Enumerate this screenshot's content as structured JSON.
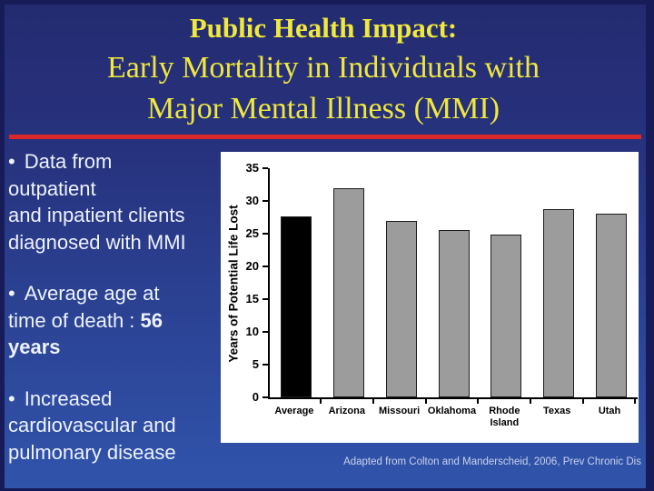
{
  "title": {
    "line1": "Public Health Impact:",
    "line2": "Early Mortality in Individuals with",
    "line3": "Major Mental Illness (MMI)"
  },
  "left_panel": {
    "bullet_char": "•",
    "bullet1": "Data from\noutpatient\nand inpatient clients\ndiagnosed with MMI",
    "bullet2_prefix": "Average age at\ntime of death : ",
    "bullet2_bold": "56\nyears",
    "bullet3": "Increased\ncardiovascular and\npulmonary disease"
  },
  "chart_data": {
    "type": "bar",
    "title": "",
    "xlabel": "",
    "ylabel": "Years of Potential Life Lost",
    "categories": [
      "Average",
      "Arizona",
      "Missouri",
      "Oklahoma",
      "Rhode Island",
      "Texas",
      "Utah"
    ],
    "values": [
      27.7,
      32,
      27,
      25.5,
      24.8,
      28.8,
      28
    ],
    "ylim": [
      0,
      35
    ],
    "yticks": [
      0,
      5,
      10,
      15,
      20,
      25,
      30,
      35
    ],
    "bar_colors": [
      "#000000",
      "#9c9c9c",
      "#9c9c9c",
      "#9c9c9c",
      "#9c9c9c",
      "#9c9c9c",
      "#9c9c9c"
    ],
    "grid": false,
    "legend": false,
    "plot_background": "#ffffff"
  },
  "citation": "Adapted from Colton and Manderscheid, 2006, Prev Chronic Dis",
  "colors": {
    "border_navy": "#171b58",
    "bg_top": "#242b70",
    "bg_bottom": "#3054ab",
    "title_yellow": "#f0e83c",
    "rule_red": "#dc2728",
    "body_text": "#eef2fb",
    "citation_text": "#c9d2ec",
    "bar_border": "#1d1d1d"
  }
}
